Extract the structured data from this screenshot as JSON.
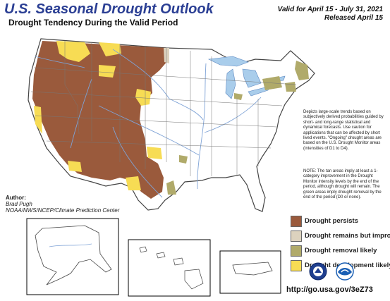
{
  "title": "U.S. Seasonal Drought Outlook",
  "subtitle": "Drought Tendency During the Valid Period",
  "valid_line": "Valid for April 15 - July 31, 2021",
  "released_line": "Released April 15",
  "note_1": "Depicts large-scale trends based on subjectively derived probabilities guided by short- and long-range statistical and dynamical forecasts. Use caution for applications that can be affected by short lived events. \"Ongoing\" drought areas are based on the U.S. Drought Monitor areas (intensities of D1 to D4).",
  "note_2": "NOTE: The tan areas imply at least a 1-category improvement in the Drought Monitor intensity levels by the end of the period, although drought will remain. The green areas imply drought removal by the end of the period (D0 or none).",
  "author_label": "Author:",
  "author_name": "Brad Pugh",
  "author_org": "NOAA/NWS/NCEP/Climate Prediction Center",
  "legend": [
    {
      "label": "Drought persists",
      "color": "#9a5a3c"
    },
    {
      "label": "Drought remains but improves",
      "color": "#dcd2be"
    },
    {
      "label": "Drought removal likely",
      "color": "#b0aa6a"
    },
    {
      "label": "Drought development likely",
      "color": "#f7dc54"
    }
  ],
  "colors": {
    "persists": "#9a5a3c",
    "improves": "#dcd2be",
    "removal": "#b0aa6a",
    "development": "#f7dc54",
    "water": "#a9cdeb",
    "river": "#7fa3d6",
    "border": "#777777",
    "title": "#2b3f94"
  },
  "url": "http://go.usa.gov/3eZ73",
  "logos": [
    "noaa-logo",
    "nws-logo"
  ]
}
